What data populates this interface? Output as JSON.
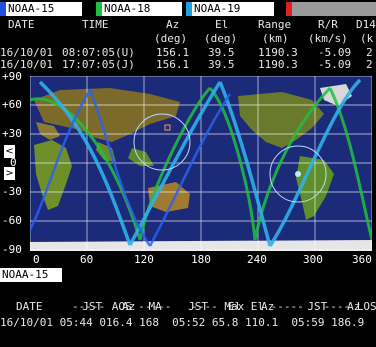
{
  "tabs": [
    {
      "label": "NOAA-15",
      "color": "#2050e0",
      "bg": "#ffffff"
    },
    {
      "label": "NOAA-18",
      "color": "#20c040",
      "bg": "#ffffff"
    },
    {
      "label": "NOAA-19",
      "color": "#20a0e0",
      "bg": "#ffffff"
    },
    {
      "label": "",
      "color": "#e02020",
      "bg": "#9a9a9a"
    }
  ],
  "header": {
    "cols": [
      "DATE",
      "TIME",
      "Az",
      "El",
      "Range",
      "R/R",
      "D14"
    ],
    "units": [
      "(deg)",
      "(deg)",
      "(km)",
      "(km/s)",
      "(k"
    ],
    "row1": [
      "16/10/01",
      "08:07:05(U)",
      "156.1",
      "39.5",
      "1190.3",
      "-5.09",
      "2"
    ],
    "row2": [
      "16/10/01",
      "17:07:05(J)",
      "156.1",
      "39.5",
      "1190.3",
      "-5.09",
      "2"
    ]
  },
  "map": {
    "y_labels": [
      "+90",
      "+60",
      "+30",
      "0",
      "-30",
      "-60",
      "-90"
    ],
    "x_labels": [
      "0",
      "60",
      "120",
      "180",
      "240",
      "300",
      "360"
    ],
    "nav_left": "<",
    "nav_right": ">"
  },
  "bottom": {
    "satellite": "NOAA-15",
    "sections": "----- AOS -----   ---- Max El -----   ---- LOS -",
    "cols": "DATE      JST   Az  MA    JST   El   Az     JST   Az",
    "values": "16/10/01 05:44 016.4 168  05:52 65.8 110.1  05:59 186.9"
  }
}
